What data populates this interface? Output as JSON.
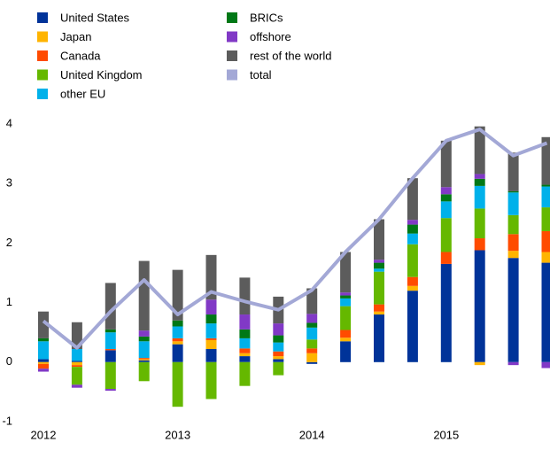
{
  "chart_data": {
    "type": "bar",
    "categories": [
      "2012",
      null,
      null,
      null,
      "2013",
      null,
      null,
      null,
      "2014",
      null,
      null,
      null,
      "2015",
      null,
      null,
      null
    ],
    "series": [
      {
        "name": "United States",
        "color": "#003399",
        "values": [
          0.05,
          0.02,
          0.2,
          0.03,
          0.3,
          0.22,
          0.1,
          0.05,
          -0.03,
          0.35,
          0.8,
          1.2,
          1.65,
          1.88,
          1.75,
          1.67
        ]
      },
      {
        "name": "Japan",
        "color": "#ffb400",
        "values": [
          -0.03,
          -0.05,
          0.0,
          0.02,
          0.05,
          0.15,
          0.05,
          0.05,
          0.15,
          0.06,
          0.05,
          0.08,
          0.0,
          -0.05,
          0.12,
          0.18
        ]
      },
      {
        "name": "Canada",
        "color": "#ff4b00",
        "values": [
          -0.08,
          -0.03,
          0.02,
          0.02,
          0.05,
          0.03,
          0.08,
          0.08,
          0.08,
          0.13,
          0.12,
          0.15,
          0.2,
          0.2,
          0.28,
          0.35
        ]
      },
      {
        "name": "United Kingdom",
        "color": "#65b800",
        "values": [
          0.0,
          -0.3,
          -0.45,
          -0.32,
          -0.75,
          -0.62,
          -0.4,
          -0.22,
          0.15,
          0.4,
          0.55,
          0.55,
          0.57,
          0.5,
          0.32,
          0.4
        ]
      },
      {
        "name": "other EU",
        "color": "#00b1ea",
        "values": [
          0.3,
          0.2,
          0.28,
          0.28,
          0.2,
          0.25,
          0.17,
          0.15,
          0.2,
          0.13,
          0.05,
          0.18,
          0.28,
          0.38,
          0.38,
          0.35
        ]
      },
      {
        "name": "BRICs",
        "color": "#007816",
        "values": [
          0.05,
          0.0,
          0.05,
          0.08,
          0.1,
          0.15,
          0.15,
          0.12,
          0.08,
          0.05,
          0.1,
          0.15,
          0.12,
          0.12,
          0.02,
          0.03
        ]
      },
      {
        "name": "offshore",
        "color": "#8139c6",
        "values": [
          -0.05,
          -0.05,
          -0.03,
          0.1,
          0.0,
          0.25,
          0.25,
          0.2,
          0.15,
          0.05,
          0.05,
          0.08,
          0.12,
          0.08,
          -0.05,
          -0.1
        ]
      },
      {
        "name": "rest of the world",
        "color": "#5c5c5c",
        "values": [
          0.45,
          0.45,
          0.78,
          1.17,
          0.85,
          0.75,
          0.62,
          0.45,
          0.43,
          0.68,
          0.68,
          0.7,
          0.78,
          0.8,
          0.65,
          0.8
        ]
      },
      {
        "name": "total",
        "color": "#a3a8d6",
        "type": "line",
        "values": [
          0.69,
          0.24,
          0.85,
          1.38,
          0.8,
          1.18,
          1.02,
          0.88,
          1.21,
          1.85,
          2.4,
          3.09,
          3.72,
          3.91,
          3.47,
          3.68
        ]
      }
    ],
    "ylim": [
      -1,
      4
    ],
    "yticks": [
      -1,
      0,
      1,
      2,
      3,
      4
    ],
    "grid": false,
    "legend": "top"
  }
}
